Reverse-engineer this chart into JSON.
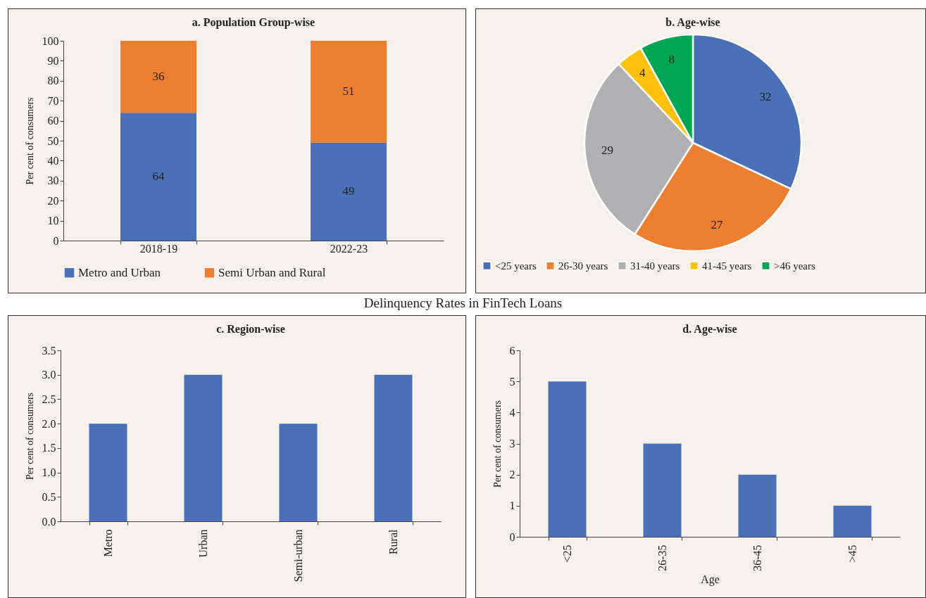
{
  "chart_data": [
    {
      "type": "bar",
      "title": "a. Population Group-wise",
      "ylabel": "Per cent of consumers",
      "categories": [
        "2018-19",
        "2022-23"
      ],
      "stacked": true,
      "data_labels": true,
      "legend": "bottom",
      "ylim": [
        0,
        100
      ],
      "yticks": [
        0,
        10,
        20,
        30,
        40,
        50,
        60,
        70,
        80,
        90,
        100
      ],
      "series": [
        {
          "name": "Metro and Urban",
          "color": "#4a70b7",
          "values": [
            64,
            49
          ]
        },
        {
          "name": "Semi Urban and Rural",
          "color": "#ee7f31",
          "values": [
            36,
            51
          ]
        }
      ]
    },
    {
      "type": "pie",
      "title": "b. Age-wise",
      "categories": [
        "<25 years",
        "26-30 years",
        "31-40 years",
        "41-45 years",
        ">46 years"
      ],
      "values": [
        32,
        27,
        29,
        4,
        8
      ],
      "colors": [
        "#4a70b7",
        "#ee7f31",
        "#b0b0b3",
        "#ffc10e",
        "#00a651"
      ],
      "data_labels": true,
      "legend": "bottom"
    },
    {
      "type": "bar",
      "title": "c. Region-wise",
      "annotations": [
        "Delinquency Rates in FinTech Loans"
      ],
      "ylabel": "Per cent of consumers",
      "categories": [
        "Metro",
        "Urban",
        "Semi-urban",
        "Rural"
      ],
      "values": [
        2,
        3,
        2,
        3
      ],
      "color": "#4a70b7",
      "ylim": [
        0,
        3.5
      ],
      "yticks": [
        {
          "value": 0,
          "label": "0.0"
        },
        0.5,
        {
          "value": 1,
          "label": "1.0"
        },
        1.5,
        {
          "value": 2,
          "label": "2.0"
        },
        2.5,
        {
          "value": 3,
          "label": "3.0"
        },
        3.5
      ]
    },
    {
      "type": "bar",
      "title": "d. Age-wise",
      "ylabel": "Per cent of consumers",
      "xlabel": "Age",
      "categories": [
        "<25",
        "26-35",
        "36-45",
        ">45"
      ],
      "values": [
        5,
        3,
        2,
        1
      ],
      "color": "#4a70b7",
      "ylim": [
        0,
        6
      ],
      "yticks": [
        0,
        1,
        2,
        3,
        4,
        5,
        6
      ]
    }
  ]
}
